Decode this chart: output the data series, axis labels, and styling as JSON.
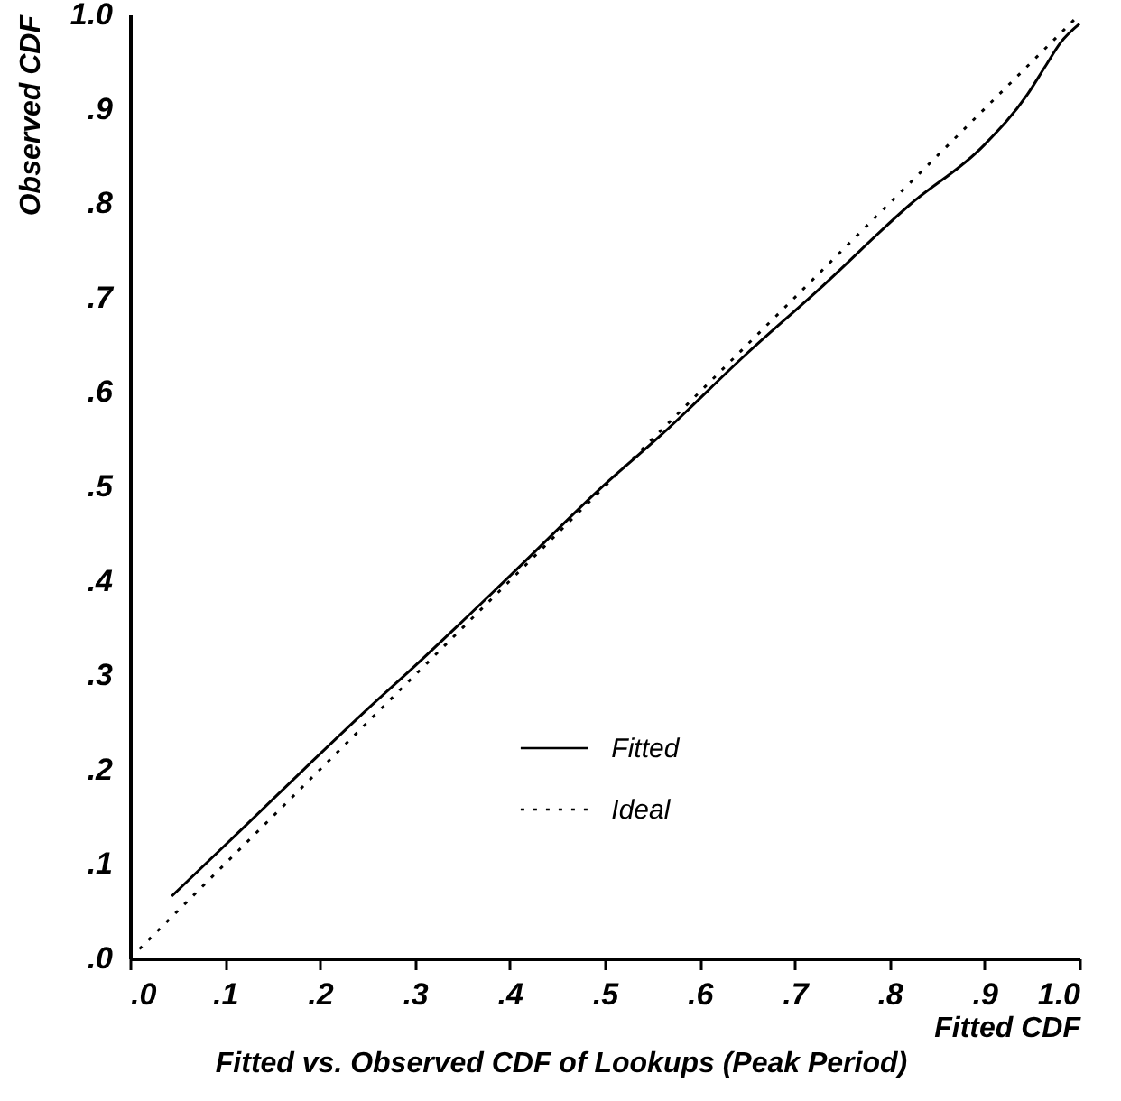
{
  "chart_data": {
    "type": "line",
    "title": "Fitted vs. Observed CDF of Lookups (Peak Period)",
    "xlabel": "Fitted CDF",
    "ylabel": "Observed CDF",
    "xlim": [
      0,
      1
    ],
    "ylim": [
      0,
      1
    ],
    "xticks": [
      {
        "value": 0,
        "label": ".0"
      },
      {
        "value": 0.1,
        "label": ".1"
      },
      {
        "value": 0.2,
        "label": ".2"
      },
      {
        "value": 0.3,
        "label": ".3"
      },
      {
        "value": 0.4,
        "label": ".4"
      },
      {
        "value": 0.5,
        "label": ".5"
      },
      {
        "value": 0.6,
        "label": ".6"
      },
      {
        "value": 0.7,
        "label": ".7"
      },
      {
        "value": 0.8,
        "label": ".8"
      },
      {
        "value": 0.9,
        "label": ".9"
      },
      {
        "value": 1,
        "label": "1.0"
      }
    ],
    "yticks": [
      {
        "value": 0,
        "label": ".0"
      },
      {
        "value": 0.1,
        "label": ".1"
      },
      {
        "value": 0.2,
        "label": ".2"
      },
      {
        "value": 0.3,
        "label": ".3"
      },
      {
        "value": 0.4,
        "label": ".4"
      },
      {
        "value": 0.5,
        "label": ".5"
      },
      {
        "value": 0.6,
        "label": ".6"
      },
      {
        "value": 0.7,
        "label": ".7"
      },
      {
        "value": 0.8,
        "label": ".8"
      },
      {
        "value": 0.9,
        "label": ".9"
      },
      {
        "value": 1,
        "label": "1.0"
      }
    ],
    "grid": false,
    "legend": "bottom right",
    "marker": "none",
    "series": [
      {
        "name": "Fitted",
        "color": "#000000",
        "line_style": "solid",
        "x": [
          0.044,
          0.12,
          0.187,
          0.25,
          0.296,
          0.4,
          0.5,
          0.56,
          0.65,
          0.727,
          0.822,
          0.899,
          0.945,
          0.964,
          0.98,
          1.0
        ],
        "values": [
          0.066,
          0.139,
          0.204,
          0.264,
          0.306,
          0.405,
          0.502,
          0.555,
          0.641,
          0.71,
          0.799,
          0.861,
          0.915,
          0.945,
          0.97,
          0.99
        ]
      },
      {
        "name": "Ideal",
        "color": "#000000",
        "line_style": "dotted",
        "x": [
          0.01,
          1.0
        ],
        "values": [
          0.01,
          1.0
        ]
      }
    ]
  }
}
